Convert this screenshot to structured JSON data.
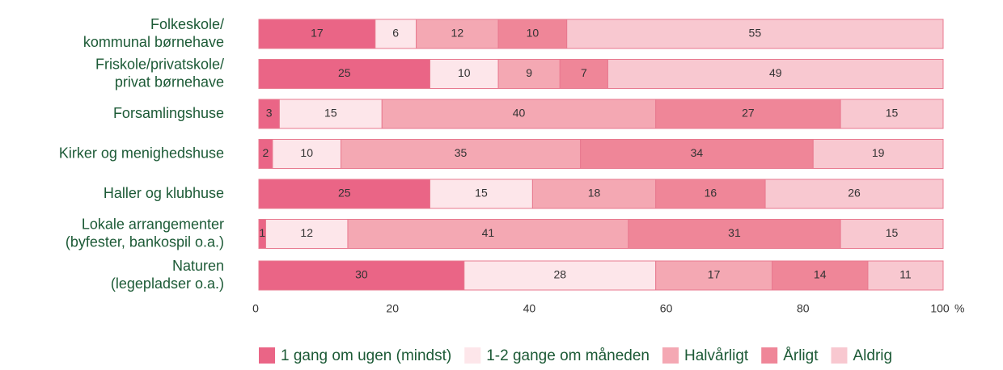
{
  "chart_data": {
    "type": "stacked-barh",
    "categories": [
      [
        "Folkeskole/",
        "kommunal børnehave"
      ],
      [
        "Friskole/privatskole/",
        "privat børnehave"
      ],
      [
        "Forsamlingshuse"
      ],
      [
        "Kirker og menighedshuse"
      ],
      [
        "Haller og klubhuse"
      ],
      [
        "Lokale arrangementer",
        "(byfester, bankospil o.a.)"
      ],
      [
        "Naturen",
        "(legepladser o.a.)"
      ]
    ],
    "series": [
      {
        "name": "1 gang om ugen (mindst)",
        "color": "#ea6586",
        "values": [
          17,
          25,
          3,
          2,
          25,
          1,
          30
        ]
      },
      {
        "name": "1-2 gange om måneden",
        "color": "#fde6ea",
        "values": [
          6,
          10,
          15,
          10,
          15,
          12,
          28
        ]
      },
      {
        "name": "Halvårligt",
        "color": "#f4a8b3",
        "values": [
          12,
          9,
          40,
          35,
          18,
          41,
          17
        ]
      },
      {
        "name": "Årligt",
        "color": "#ef8698",
        "values": [
          10,
          7,
          27,
          34,
          16,
          31,
          14
        ]
      },
      {
        "name": "Aldrig",
        "color": "#f8c8d0",
        "values": [
          55,
          49,
          15,
          19,
          26,
          15,
          11
        ]
      }
    ],
    "xlim": [
      0,
      100
    ],
    "xticks": [
      0,
      20,
      40,
      60,
      80,
      100
    ],
    "xlabel": "%",
    "legend": "bottom"
  }
}
